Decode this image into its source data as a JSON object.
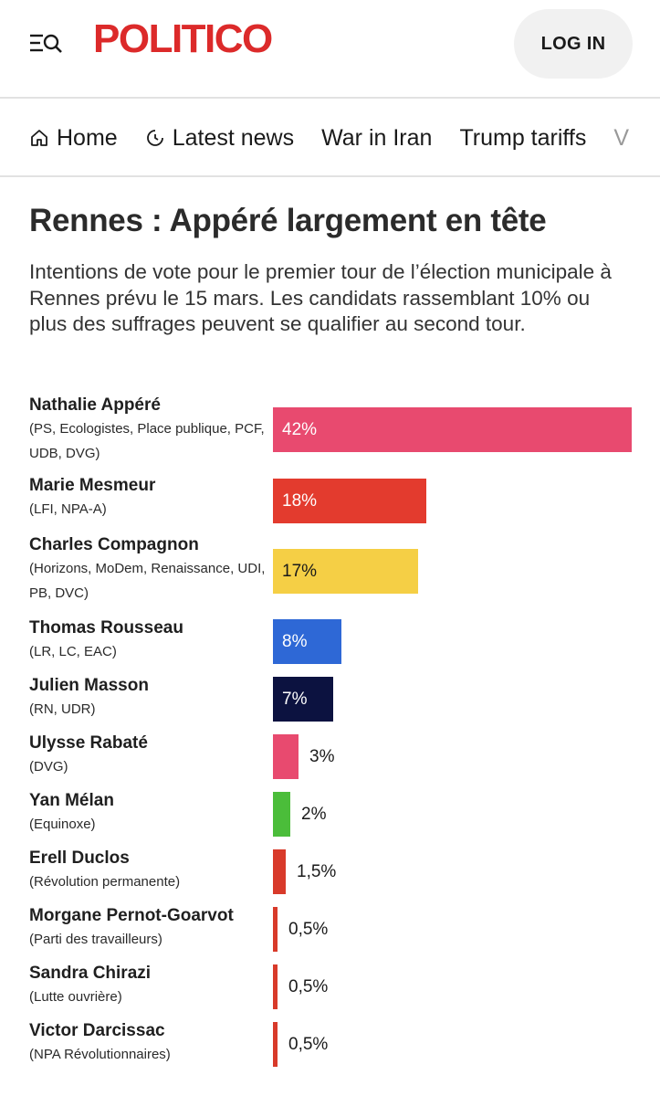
{
  "header": {
    "logo": "POLITICO",
    "login_label": "LOG IN"
  },
  "nav": {
    "items": [
      {
        "label": "Home",
        "icon": "home-icon"
      },
      {
        "label": "Latest news",
        "icon": "clock-icon"
      },
      {
        "label": "War in Iran"
      },
      {
        "label": "Trump tariffs"
      },
      {
        "label": "V"
      }
    ]
  },
  "article": {
    "title": "Rennes : Appéré largement en tête",
    "subtitle": "Intentions de vote pour le premier tour de l’élection municipale à Rennes prévu le 15 mars. Les candidats rassemblant 10% ou plus des suffrages peuvent se qualifier au second tour."
  },
  "chart_data": {
    "type": "bar",
    "orientation": "horizontal",
    "title": "Rennes : Appéré largement en tête",
    "xlim": [
      0,
      42
    ],
    "categories": [
      "Nathalie Appéré",
      "Marie Mesmeur",
      "Charles Compagnon",
      "Thomas Rousseau",
      "Julien Masson",
      "Ulysse Rabaté",
      "Yan Mélan",
      "Erell Duclos",
      "Morgane Pernot-Goarvot",
      "Sandra Chirazi",
      "Victor Darcissac"
    ],
    "rows": [
      {
        "name": "Nathalie Appéré",
        "party": "(PS, Ecologistes, Place publique, PCF, UDB, DVG)",
        "value": 42,
        "label": "42%",
        "color": "#e84a6f",
        "label_inside": true,
        "label_color": "#ffffff"
      },
      {
        "name": "Marie Mesmeur",
        "party": "(LFI, NPA-A)",
        "value": 18,
        "label": "18%",
        "color": "#e33b2e",
        "label_inside": true,
        "label_color": "#ffffff"
      },
      {
        "name": "Charles Compagnon",
        "party": "(Horizons, MoDem, Renaissance, UDI, PB, DVC)",
        "value": 17,
        "label": "17%",
        "color": "#f5cf45",
        "label_inside": true,
        "label_color": "#1a1a1a"
      },
      {
        "name": "Thomas Rousseau",
        "party": "(LR, LC, EAC)",
        "value": 8,
        "label": "8%",
        "color": "#2e68d6",
        "label_inside": true,
        "label_color": "#ffffff"
      },
      {
        "name": "Julien Masson",
        "party": "(RN, UDR)",
        "value": 7,
        "label": "7%",
        "color": "#0c1240",
        "label_inside": true,
        "label_color": "#ffffff"
      },
      {
        "name": "Ulysse Rabaté",
        "party": "(DVG)",
        "value": 3,
        "label": "3%",
        "color": "#e84a6f",
        "label_inside": false,
        "label_color": "#1a1a1a"
      },
      {
        "name": "Yan Mélan",
        "party": "(Equinoxe)",
        "value": 2,
        "label": "2%",
        "color": "#4bbd3a",
        "label_inside": false,
        "label_color": "#1a1a1a"
      },
      {
        "name": "Erell Duclos",
        "party": "(Révolution permanente)",
        "value": 1.5,
        "label": "1,5%",
        "color": "#d83a2a",
        "label_inside": false,
        "label_color": "#1a1a1a"
      },
      {
        "name": "Morgane Pernot-Goarvot",
        "party": "(Parti des travailleurs)",
        "value": 0.5,
        "label": "0,5%",
        "color": "#d83a2a",
        "label_inside": false,
        "label_color": "#1a1a1a"
      },
      {
        "name": "Sandra Chirazi",
        "party": "(Lutte ouvrière)",
        "value": 0.5,
        "label": "0,5%",
        "color": "#d83a2a",
        "label_inside": false,
        "label_color": "#1a1a1a"
      },
      {
        "name": "Victor Darcissac",
        "party": "(NPA Révolutionnaires)",
        "value": 0.5,
        "label": "0,5%",
        "color": "#d83a2a",
        "label_inside": false,
        "label_color": "#1a1a1a"
      }
    ]
  }
}
